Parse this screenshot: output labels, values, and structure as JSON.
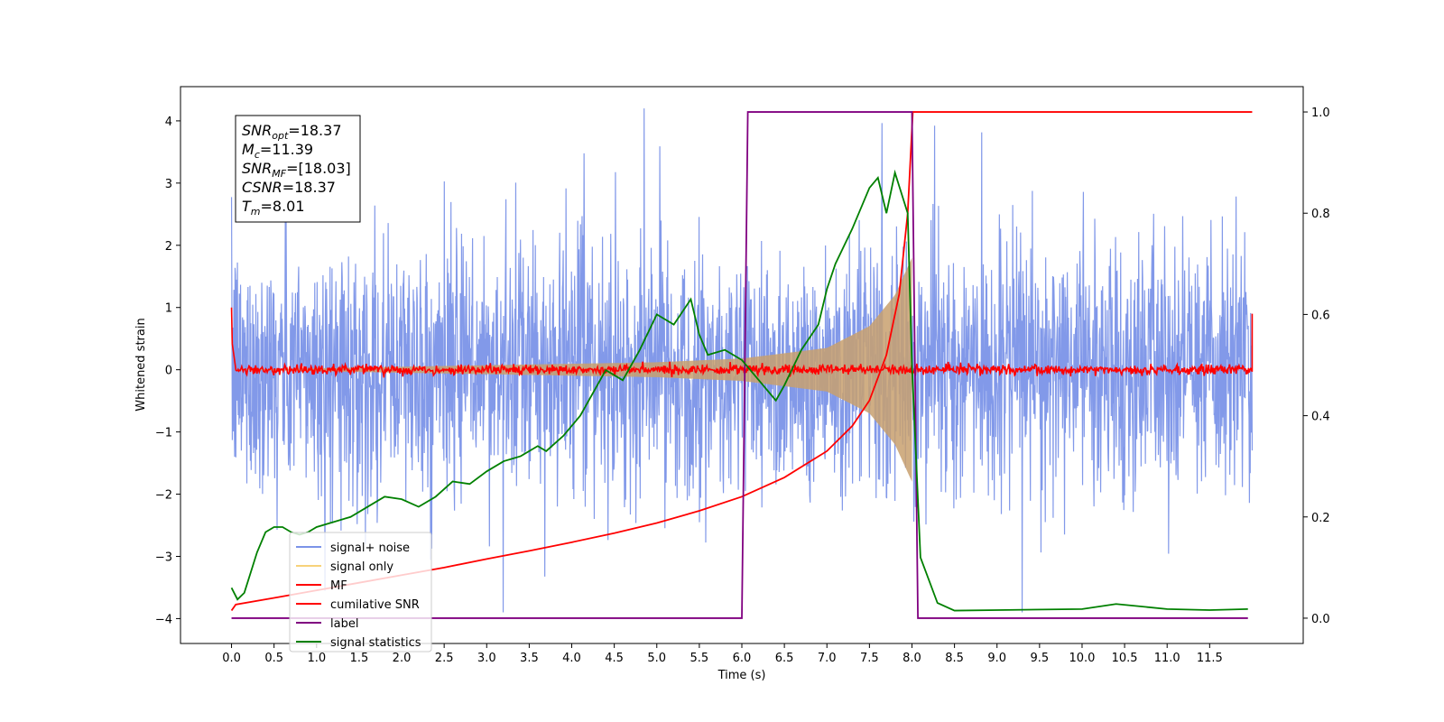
{
  "chart_data": {
    "type": "line",
    "xlabel": "Time (s)",
    "ylabel": "Whitened strain",
    "xlim": [
      -0.6,
      12.6
    ],
    "ylim_left": [
      -4.4,
      4.55
    ],
    "ylim_right": [
      -0.05,
      1.05
    ],
    "x_ticks": [
      "0.0",
      "0.5",
      "1.0",
      "1.5",
      "2.0",
      "2.5",
      "3.0",
      "3.5",
      "4.0",
      "4.5",
      "5.0",
      "5.5",
      "6.0",
      "6.5",
      "7.0",
      "7.5",
      "8.0",
      "8.5",
      "9.0",
      "9.5",
      "10.0",
      "10.5",
      "11.0",
      "11.5"
    ],
    "y_ticks_left": [
      4,
      3,
      2,
      1,
      0,
      -1,
      -2,
      -3,
      -4
    ],
    "y_ticks_right": [
      "1.0",
      "0.8",
      "0.6",
      "0.4",
      "0.2",
      "0.0"
    ],
    "legend": {
      "placement": "lower-left",
      "entries": [
        {
          "label": "signal+ noise",
          "color": "#7b93e8"
        },
        {
          "label": "signal only",
          "color": "#f7d27a"
        },
        {
          "label": "MF",
          "color": "#ff0000"
        },
        {
          "label": "cumilative SNR",
          "color": "#ff0000"
        },
        {
          "label": "label",
          "color": "#800080"
        },
        {
          "label": "signal statistics",
          "color": "#008000"
        }
      ]
    },
    "annotation": {
      "lines": [
        {
          "base": "SNR",
          "sub": "opt",
          "value": "=18.37"
        },
        {
          "base": "M",
          "sub": "c",
          "value": "=11.39"
        },
        {
          "base": "SNR",
          "sub": "MF",
          "value": "=[18.03]"
        },
        {
          "base": "CSNR",
          "sub": "",
          "value": "=18.37"
        },
        {
          "base": "T",
          "sub": "m",
          "value": "=8.01"
        }
      ]
    },
    "series": [
      {
        "name": "signal+ noise",
        "axis": "left",
        "color": "#7b93e8",
        "kind": "noise",
        "x_range": [
          0,
          12.0
        ],
        "typical_amplitude": 1.0,
        "peak": 4.2
      },
      {
        "name": "signal only",
        "axis": "left",
        "color": "#c8a06e",
        "kind": "chirp",
        "x_range": [
          0,
          8.0
        ],
        "envelope": [
          [
            5.0,
            0.12
          ],
          [
            6.0,
            0.18
          ],
          [
            7.0,
            0.35
          ],
          [
            7.5,
            0.7
          ],
          [
            7.8,
            1.2
          ],
          [
            8.0,
            1.8
          ]
        ]
      },
      {
        "name": "MF",
        "axis": "left",
        "color": "#ff0000",
        "kind": "flat-noise",
        "x_range": [
          0,
          12.0
        ],
        "edge_values": [
          [
            0.0,
            1.0
          ],
          [
            12.0,
            0.9
          ]
        ]
      },
      {
        "name": "cumilative SNR",
        "axis": "right",
        "color": "#ff0000",
        "points": [
          [
            0.0,
            0.015
          ],
          [
            0.05,
            0.027
          ],
          [
            0.5,
            0.04
          ],
          [
            1.0,
            0.055
          ],
          [
            1.5,
            0.07
          ],
          [
            2.0,
            0.085
          ],
          [
            2.5,
            0.1
          ],
          [
            3.0,
            0.117
          ],
          [
            3.5,
            0.133
          ],
          [
            4.0,
            0.15
          ],
          [
            4.5,
            0.168
          ],
          [
            5.0,
            0.188
          ],
          [
            5.5,
            0.212
          ],
          [
            6.0,
            0.24
          ],
          [
            6.5,
            0.278
          ],
          [
            7.0,
            0.33
          ],
          [
            7.3,
            0.38
          ],
          [
            7.5,
            0.43
          ],
          [
            7.7,
            0.52
          ],
          [
            7.85,
            0.64
          ],
          [
            7.95,
            0.8
          ],
          [
            8.01,
            1.0
          ],
          [
            12.0,
            1.0
          ]
        ]
      },
      {
        "name": "label",
        "axis": "right",
        "color": "#800080",
        "points": [
          [
            0.0,
            0.0
          ],
          [
            6.0,
            0.0
          ],
          [
            6.07,
            1.0
          ],
          [
            8.0,
            1.0
          ],
          [
            8.07,
            0.0
          ],
          [
            11.95,
            0.0
          ]
        ]
      },
      {
        "name": "signal statistics",
        "axis": "right",
        "color": "#008000",
        "points": [
          [
            0.0,
            0.06
          ],
          [
            0.07,
            0.037
          ],
          [
            0.15,
            0.05
          ],
          [
            0.3,
            0.13
          ],
          [
            0.4,
            0.17
          ],
          [
            0.5,
            0.18
          ],
          [
            0.6,
            0.18
          ],
          [
            0.7,
            0.17
          ],
          [
            0.8,
            0.165
          ],
          [
            0.9,
            0.17
          ],
          [
            1.0,
            0.18
          ],
          [
            1.2,
            0.19
          ],
          [
            1.4,
            0.2
          ],
          [
            1.6,
            0.22
          ],
          [
            1.8,
            0.24
          ],
          [
            2.0,
            0.235
          ],
          [
            2.2,
            0.22
          ],
          [
            2.4,
            0.24
          ],
          [
            2.6,
            0.27
          ],
          [
            2.8,
            0.265
          ],
          [
            3.0,
            0.29
          ],
          [
            3.2,
            0.31
          ],
          [
            3.4,
            0.32
          ],
          [
            3.6,
            0.34
          ],
          [
            3.7,
            0.33
          ],
          [
            3.9,
            0.36
          ],
          [
            4.1,
            0.4
          ],
          [
            4.3,
            0.46
          ],
          [
            4.4,
            0.49
          ],
          [
            4.6,
            0.47
          ],
          [
            4.8,
            0.53
          ],
          [
            5.0,
            0.6
          ],
          [
            5.2,
            0.58
          ],
          [
            5.4,
            0.63
          ],
          [
            5.5,
            0.56
          ],
          [
            5.6,
            0.52
          ],
          [
            5.8,
            0.53
          ],
          [
            6.0,
            0.51
          ],
          [
            6.2,
            0.47
          ],
          [
            6.4,
            0.43
          ],
          [
            6.5,
            0.46
          ],
          [
            6.7,
            0.53
          ],
          [
            6.9,
            0.58
          ],
          [
            7.0,
            0.65
          ],
          [
            7.1,
            0.7
          ],
          [
            7.3,
            0.77
          ],
          [
            7.5,
            0.85
          ],
          [
            7.6,
            0.87
          ],
          [
            7.7,
            0.8
          ],
          [
            7.8,
            0.88
          ],
          [
            7.95,
            0.8
          ],
          [
            8.0,
            0.5
          ],
          [
            8.1,
            0.12
          ],
          [
            8.3,
            0.03
          ],
          [
            8.5,
            0.015
          ],
          [
            9.0,
            0.016
          ],
          [
            10.0,
            0.018
          ],
          [
            10.4,
            0.028
          ],
          [
            11.0,
            0.018
          ],
          [
            11.5,
            0.016
          ],
          [
            11.95,
            0.018
          ]
        ]
      }
    ]
  }
}
